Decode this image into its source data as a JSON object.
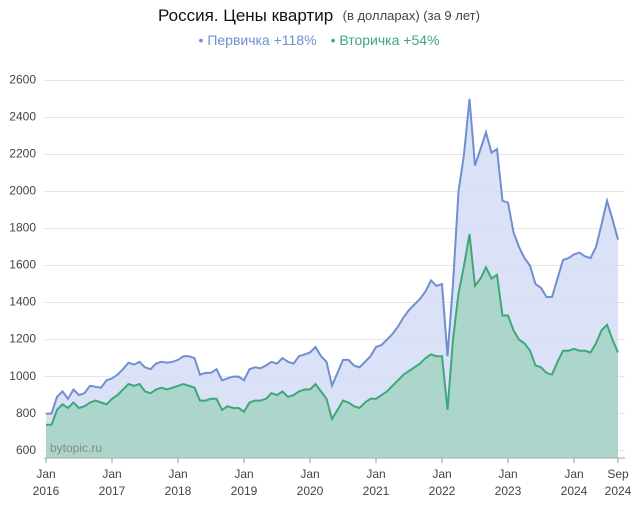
{
  "chart_data": {
    "type": "area",
    "title": "Россия. Цены квартир",
    "title_note": "(в долларах) (за 9 лет)",
    "watermark": "bytopic.ru",
    "grid": true,
    "ylim": [
      560,
      2700
    ],
    "yticks": [
      600,
      800,
      1000,
      1200,
      1400,
      1600,
      1800,
      2000,
      2200,
      2400,
      2600
    ],
    "xlim": [
      "2016-01",
      "2024-09"
    ],
    "xticks": [
      {
        "value": "2016-01",
        "label": "Jan",
        "year": "2016"
      },
      {
        "value": "2017-01",
        "label": "Jan",
        "year": "2017"
      },
      {
        "value": "2018-01",
        "label": "Jan",
        "year": "2018"
      },
      {
        "value": "2019-01",
        "label": "Jan",
        "year": "2019"
      },
      {
        "value": "2020-01",
        "label": "Jan",
        "year": "2020"
      },
      {
        "value": "2021-01",
        "label": "Jan",
        "year": "2021"
      },
      {
        "value": "2022-01",
        "label": "Jan",
        "year": "2022"
      },
      {
        "value": "2023-01",
        "label": "Jan",
        "year": "2023"
      },
      {
        "value": "2024-01",
        "label": "Jan",
        "year": "2024"
      },
      {
        "value": "2024-09",
        "label": "Sep",
        "year": "2024"
      }
    ],
    "x": [
      "2016-01",
      "2016-02",
      "2016-03",
      "2016-04",
      "2016-05",
      "2016-06",
      "2016-07",
      "2016-08",
      "2016-09",
      "2016-10",
      "2016-11",
      "2016-12",
      "2017-01",
      "2017-02",
      "2017-03",
      "2017-04",
      "2017-05",
      "2017-06",
      "2017-07",
      "2017-08",
      "2017-09",
      "2017-10",
      "2017-11",
      "2017-12",
      "2018-01",
      "2018-02",
      "2018-03",
      "2018-04",
      "2018-05",
      "2018-06",
      "2018-07",
      "2018-08",
      "2018-09",
      "2018-10",
      "2018-11",
      "2018-12",
      "2019-01",
      "2019-02",
      "2019-03",
      "2019-04",
      "2019-05",
      "2019-06",
      "2019-07",
      "2019-08",
      "2019-09",
      "2019-10",
      "2019-11",
      "2019-12",
      "2020-01",
      "2020-02",
      "2020-03",
      "2020-04",
      "2020-05",
      "2020-06",
      "2020-07",
      "2020-08",
      "2020-09",
      "2020-10",
      "2020-11",
      "2020-12",
      "2021-01",
      "2021-02",
      "2021-03",
      "2021-04",
      "2021-05",
      "2021-06",
      "2021-07",
      "2021-08",
      "2021-09",
      "2021-10",
      "2021-11",
      "2021-12",
      "2022-01",
      "2022-02",
      "2022-03",
      "2022-04",
      "2022-05",
      "2022-06",
      "2022-07",
      "2022-08",
      "2022-09",
      "2022-10",
      "2022-11",
      "2022-12",
      "2023-01",
      "2023-02",
      "2023-03",
      "2023-04",
      "2023-05",
      "2023-06",
      "2023-07",
      "2023-08",
      "2023-09",
      "2023-10",
      "2023-11",
      "2023-12",
      "2024-01",
      "2024-02",
      "2024-03",
      "2024-04",
      "2024-05",
      "2024-06",
      "2024-07",
      "2024-08",
      "2024-09"
    ],
    "series": [
      {
        "name": "Первичка +118%",
        "color": "#6f8fcf",
        "fill": "#d5ddf6",
        "values": [
          800,
          800,
          890,
          920,
          880,
          930,
          900,
          910,
          950,
          945,
          940,
          980,
          990,
          1010,
          1040,
          1075,
          1065,
          1080,
          1050,
          1040,
          1070,
          1080,
          1075,
          1080,
          1090,
          1110,
          1110,
          1100,
          1010,
          1020,
          1020,
          1040,
          980,
          990,
          1000,
          1000,
          980,
          1040,
          1050,
          1045,
          1060,
          1080,
          1070,
          1100,
          1080,
          1070,
          1110,
          1120,
          1130,
          1160,
          1110,
          1080,
          950,
          1020,
          1090,
          1090,
          1060,
          1050,
          1080,
          1110,
          1160,
          1170,
          1200,
          1230,
          1270,
          1320,
          1360,
          1390,
          1420,
          1460,
          1520,
          1490,
          1500,
          1110,
          1500,
          2000,
          2200,
          2500,
          2140,
          2230,
          2320,
          2210,
          2230,
          1950,
          1940,
          1780,
          1700,
          1640,
          1600,
          1500,
          1480,
          1430,
          1430,
          1530,
          1630,
          1640,
          1660,
          1670,
          1650,
          1640,
          1700,
          1820,
          1950,
          1850,
          1740
        ]
      },
      {
        "name": "Вторичка +54%",
        "color": "#3fa77a",
        "fill": "#a3d2c3",
        "values": [
          740,
          740,
          820,
          850,
          830,
          860,
          830,
          840,
          860,
          870,
          860,
          850,
          880,
          900,
          930,
          960,
          950,
          960,
          920,
          910,
          930,
          940,
          930,
          940,
          950,
          960,
          950,
          940,
          870,
          870,
          880,
          880,
          820,
          840,
          830,
          830,
          810,
          860,
          870,
          870,
          880,
          910,
          900,
          920,
          890,
          900,
          920,
          930,
          930,
          960,
          920,
          880,
          770,
          820,
          870,
          860,
          840,
          830,
          860,
          880,
          880,
          900,
          920,
          950,
          980,
          1010,
          1030,
          1050,
          1070,
          1100,
          1120,
          1110,
          1110,
          820,
          1200,
          1450,
          1600,
          1770,
          1490,
          1530,
          1590,
          1530,
          1550,
          1330,
          1330,
          1250,
          1200,
          1180,
          1140,
          1060,
          1050,
          1020,
          1010,
          1080,
          1140,
          1140,
          1150,
          1140,
          1140,
          1130,
          1180,
          1250,
          1280,
          1200,
          1130
        ]
      }
    ]
  }
}
